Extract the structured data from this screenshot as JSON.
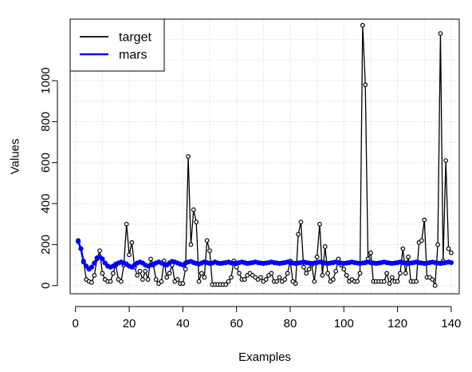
{
  "chart_data": {
    "type": "line",
    "title": "",
    "xlabel": "Examples",
    "ylabel": "Values",
    "xlim": [
      -2,
      143
    ],
    "ylim": [
      -40,
      1300
    ],
    "x_ticks": [
      0,
      20,
      40,
      60,
      80,
      100,
      120,
      140
    ],
    "y_ticks": [
      0,
      200,
      400,
      600,
      800,
      1000
    ],
    "grid": true,
    "legend_position": "top-left",
    "series": [
      {
        "name": "target",
        "color": "#000000",
        "style": "lines-and-circles",
        "x": [
          1,
          2,
          3,
          4,
          5,
          6,
          7,
          8,
          9,
          10,
          11,
          12,
          13,
          14,
          15,
          16,
          17,
          18,
          19,
          20,
          21,
          22,
          23,
          24,
          25,
          26,
          27,
          28,
          29,
          30,
          31,
          32,
          33,
          34,
          35,
          36,
          37,
          38,
          39,
          40,
          41,
          42,
          43,
          44,
          45,
          46,
          47,
          48,
          49,
          50,
          51,
          52,
          53,
          54,
          55,
          56,
          57,
          58,
          59,
          60,
          61,
          62,
          63,
          64,
          65,
          66,
          67,
          68,
          69,
          70,
          71,
          72,
          73,
          74,
          75,
          76,
          77,
          78,
          79,
          80,
          81,
          82,
          83,
          84,
          85,
          86,
          87,
          88,
          89,
          90,
          91,
          92,
          93,
          94,
          95,
          96,
          97,
          98,
          99,
          100,
          101,
          102,
          103,
          104,
          105,
          106,
          107,
          108,
          109,
          110,
          111,
          112,
          113,
          114,
          115,
          116,
          117,
          118,
          119,
          120,
          121,
          122,
          123,
          124,
          125,
          126,
          127,
          128,
          129,
          130,
          131,
          132,
          133,
          134,
          135,
          136,
          137,
          138,
          139,
          140
        ],
        "values": [
          220,
          180,
          120,
          30,
          20,
          15,
          50,
          130,
          170,
          60,
          30,
          20,
          20,
          60,
          100,
          30,
          20,
          100,
          300,
          150,
          210,
          90,
          50,
          70,
          30,
          70,
          30,
          130,
          100,
          30,
          10,
          20,
          120,
          40,
          60,
          100,
          20,
          30,
          10,
          10,
          80,
          630,
          200,
          370,
          310,
          20,
          60,
          40,
          220,
          170,
          5,
          5,
          5,
          5,
          5,
          5,
          20,
          40,
          120,
          90,
          60,
          30,
          30,
          50,
          60,
          50,
          40,
          30,
          40,
          20,
          30,
          50,
          60,
          20,
          20,
          40,
          20,
          30,
          60,
          120,
          20,
          10,
          250,
          310,
          90,
          60,
          80,
          100,
          20,
          140,
          300,
          50,
          190,
          60,
          20,
          30,
          70,
          130,
          100,
          80,
          50,
          20,
          30,
          20,
          20,
          60,
          1270,
          980,
          130,
          160,
          20,
          20,
          20,
          20,
          20,
          60,
          10,
          40,
          20,
          20,
          60,
          180,
          60,
          140,
          20,
          20,
          20,
          210,
          220,
          320,
          40,
          40,
          30,
          0,
          200,
          1230,
          120,
          610,
          180,
          160
        ]
      },
      {
        "name": "mars",
        "color": "#0000ff",
        "style": "thick-line-with-points",
        "x": [
          1,
          2,
          3,
          4,
          5,
          6,
          7,
          8,
          9,
          10,
          11,
          12,
          13,
          14,
          15,
          16,
          17,
          18,
          19,
          20,
          21,
          22,
          23,
          24,
          25,
          26,
          27,
          28,
          29,
          30,
          31,
          32,
          33,
          34,
          35,
          36,
          37,
          38,
          39,
          40,
          41,
          42,
          43,
          44,
          45,
          46,
          47,
          48,
          49,
          50,
          51,
          52,
          53,
          54,
          55,
          56,
          57,
          58,
          59,
          60,
          61,
          62,
          63,
          64,
          65,
          66,
          67,
          68,
          69,
          70,
          71,
          72,
          73,
          74,
          75,
          76,
          77,
          78,
          79,
          80,
          81,
          82,
          83,
          84,
          85,
          86,
          87,
          88,
          89,
          90,
          91,
          92,
          93,
          94,
          95,
          96,
          97,
          98,
          99,
          100,
          101,
          102,
          103,
          104,
          105,
          106,
          107,
          108,
          109,
          110,
          111,
          112,
          113,
          114,
          115,
          116,
          117,
          118,
          119,
          120,
          121,
          122,
          123,
          124,
          125,
          126,
          127,
          128,
          129,
          130,
          131,
          132,
          133,
          134,
          135,
          136,
          137,
          138,
          139,
          140
        ],
        "values": [
          215,
          180,
          115,
          95,
          80,
          90,
          110,
          135,
          140,
          130,
          110,
          95,
          90,
          95,
          105,
          110,
          115,
          110,
          105,
          95,
          90,
          100,
          110,
          115,
          110,
          100,
          95,
          100,
          105,
          110,
          115,
          110,
          105,
          100,
          110,
          118,
          115,
          110,
          105,
          100,
          110,
          115,
          118,
          112,
          108,
          105,
          110,
          115,
          112,
          108,
          110,
          115,
          110,
          108,
          110,
          112,
          115,
          110,
          108,
          110,
          112,
          115,
          112,
          108,
          110,
          112,
          115,
          112,
          110,
          108,
          110,
          112,
          115,
          112,
          110,
          108,
          110,
          112,
          115,
          112,
          110,
          108,
          110,
          112,
          115,
          112,
          110,
          108,
          110,
          112,
          115,
          112,
          110,
          108,
          110,
          112,
          115,
          112,
          110,
          108,
          110,
          112,
          115,
          112,
          110,
          108,
          110,
          112,
          115,
          112,
          110,
          108,
          110,
          112,
          115,
          112,
          110,
          108,
          110,
          112,
          115,
          112,
          110,
          108,
          110,
          112,
          115,
          112,
          110,
          108,
          110,
          112,
          115,
          112,
          110,
          108,
          110,
          112,
          115,
          112
        ]
      }
    ]
  }
}
